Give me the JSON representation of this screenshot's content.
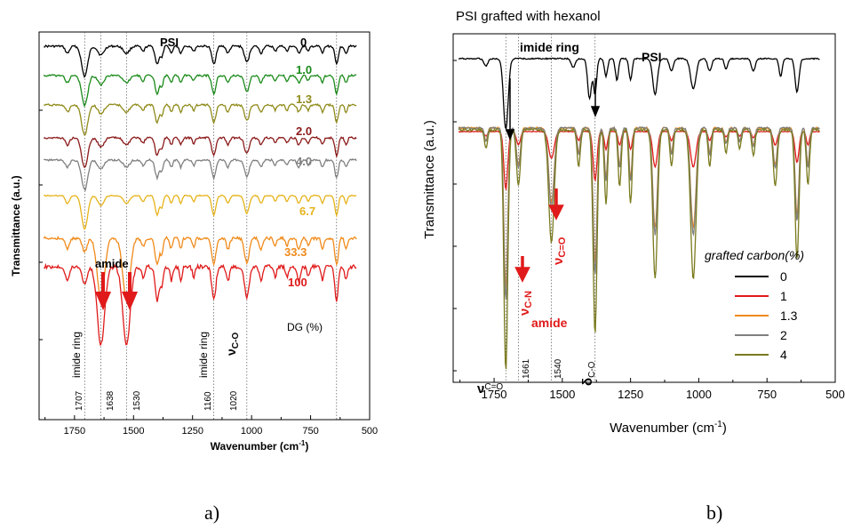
{
  "colors": {
    "black": "#000000",
    "green": "#1a8a1a",
    "olive": "#8f8a1a",
    "darkred": "#8b1a1a",
    "gray": "#808080",
    "gold": "#e6b31a",
    "orange": "#f08a1a",
    "red": "#e01a1a",
    "khaki": "#7a7a1e"
  },
  "panels": [
    {
      "caption": "a)"
    },
    {
      "caption": "b)"
    }
  ],
  "chart_data": [
    {
      "type": "line",
      "title": "",
      "xlabel": "Wavenumber (cm-1)",
      "xlabel_base": "Wavenumber (cm",
      "xlabel_sup": "-1",
      "xlabel_end": ")",
      "ylabel": "Transmittance (a.u.)",
      "xlim": [
        1900,
        500
      ],
      "x_ticks": [
        "1750",
        "1500",
        "1250",
        "1000",
        "750",
        "500"
      ],
      "legend_title": "DG (%)",
      "series": [
        {
          "name": "0",
          "color": "#000000"
        },
        {
          "name": "1.0",
          "color": "#1a8a1a"
        },
        {
          "name": "1.3",
          "color": "#8f8a1a"
        },
        {
          "name": "2.0",
          "color": "#8b1a1a"
        },
        {
          "name": "4.0",
          "color": "#808080"
        },
        {
          "name": "6.7",
          "color": "#e6b31a"
        },
        {
          "name": "33.3",
          "color": "#f08a1a"
        },
        {
          "name": "100",
          "color": "#e01a1a"
        }
      ],
      "reference_lines": [
        1707,
        1638,
        1530,
        1160,
        1020,
        640
      ],
      "annotations": {
        "psi": "PSI",
        "amide": "amide",
        "imide_ring_1": "imide ring",
        "imide_ring_2": "imide ring",
        "nu": "ν",
        "nu_sub": "C-O",
        "wn_1707": "1707",
        "wn_1638": "1638",
        "wn_1530": "1530",
        "wn_1160": "1160",
        "wn_1020": "1020"
      }
    },
    {
      "type": "line",
      "title": "PSI grafted with hexanol",
      "xlabel": "Wavenumber (cm-1)",
      "xlabel_base": "Wavenumber (cm",
      "xlabel_sup": "-1",
      "xlabel_end": ")",
      "ylabel": "Transmittance (a.u.)",
      "xlim": [
        1900,
        500
      ],
      "x_ticks": [
        "1750",
        "1500",
        "1250",
        "1000",
        "750",
        "500"
      ],
      "legend_title": "grafted carbon(%)",
      "legend_position": "right",
      "series": [
        {
          "name": "0",
          "color": "#000000"
        },
        {
          "name": "1",
          "color": "#e01a1a"
        },
        {
          "name": "1.3",
          "color": "#f08a1a"
        },
        {
          "name": "2",
          "color": "#808080"
        },
        {
          "name": "4",
          "color": "#7a7a1e"
        }
      ],
      "reference_lines": [
        1707,
        1661,
        1540,
        1380
      ],
      "annotations": {
        "imide_ring": "imide ring",
        "psi": "PSI",
        "nu_co_main": "ν",
        "nu_co_sub": "C=O",
        "nu_cn_main": "ν",
        "nu_cn_sub": "C-N",
        "nu_co2_main": "ν",
        "nu_co2_sub": "C=O",
        "amide": "amide",
        "wn_1661": "1661",
        "wn_1540": "1540",
        "delta_main": "δ",
        "delta_sub": "C-O"
      }
    }
  ]
}
